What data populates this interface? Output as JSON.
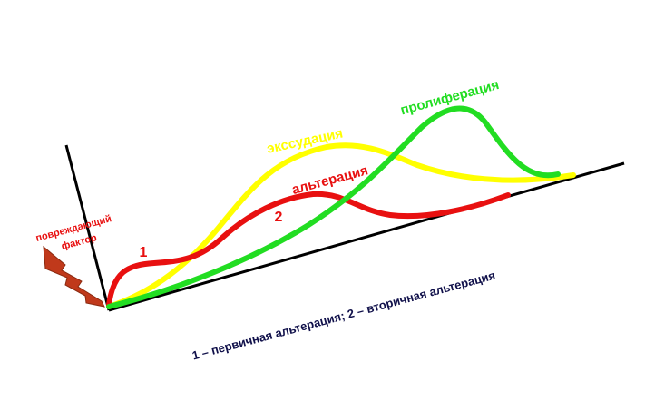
{
  "factor": {
    "line1": "повреждающий",
    "line2": "фактор"
  },
  "curves": {
    "alteration": "альтерация",
    "exudation": "экссудация",
    "proliferation": "пролиферация"
  },
  "markers": {
    "primary": "1",
    "secondary": "2"
  },
  "caption": "1 – первичная альтерация; 2 – вторичная альтерация"
}
